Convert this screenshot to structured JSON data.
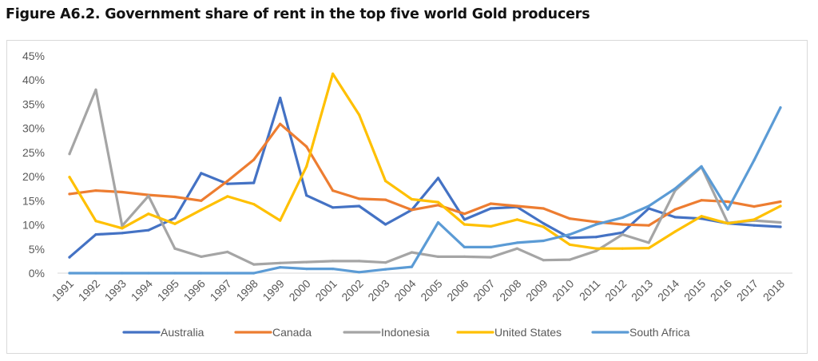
{
  "figure_title": "Figure A6.2. Government share of rent in the top five world Gold producers",
  "chart_data": {
    "type": "line",
    "title": "Figure A6.2. Government share of rent in the top five world Gold producers",
    "xlabel": "",
    "ylabel": "",
    "ylim": [
      0,
      45
    ],
    "yticks": [
      "0%",
      "5%",
      "10%",
      "15%",
      "20%",
      "25%",
      "30%",
      "35%",
      "40%",
      "45%"
    ],
    "ytick_values": [
      0,
      5,
      10,
      15,
      20,
      25,
      30,
      35,
      40,
      45
    ],
    "grid": false,
    "legend_position": "bottom",
    "x": [
      "1991",
      "1992",
      "1993",
      "1994",
      "1995",
      "1996",
      "1997",
      "1998",
      "1999",
      "2000",
      "2001",
      "2002",
      "2003",
      "2004",
      "2005",
      "2006",
      "2007",
      "2008",
      "2009",
      "2010",
      "2011",
      "2012",
      "2013",
      "2014",
      "2015",
      "2016",
      "2017",
      "2018"
    ],
    "series": [
      {
        "name": "Australia",
        "color": "#4472C4",
        "values": [
          3.3,
          8.0,
          8.3,
          8.9,
          11.4,
          20.7,
          18.5,
          18.7,
          36.3,
          16.1,
          13.6,
          13.9,
          10.1,
          13.1,
          19.7,
          11.1,
          13.4,
          13.7,
          10.3,
          7.3,
          7.5,
          8.4,
          13.4,
          11.6,
          11.3,
          10.3,
          9.9,
          9.6
        ]
      },
      {
        "name": "Canada",
        "color": "#ED7D31",
        "values": [
          16.4,
          17.1,
          16.8,
          16.2,
          15.8,
          15.0,
          19.1,
          23.5,
          30.9,
          26.2,
          17.1,
          15.4,
          15.2,
          13.1,
          14.1,
          12.3,
          14.4,
          13.9,
          13.4,
          11.3,
          10.6,
          10.1,
          9.9,
          13.2,
          15.1,
          14.8,
          13.8,
          14.8
        ]
      },
      {
        "name": "Indonesia",
        "color": "#A5A5A5",
        "values": [
          24.7,
          38.0,
          9.8,
          16.0,
          5.1,
          3.4,
          4.4,
          1.8,
          2.1,
          2.3,
          2.5,
          2.5,
          2.2,
          4.3,
          3.4,
          3.4,
          3.3,
          5.1,
          2.7,
          2.8,
          4.6,
          8.0,
          6.3,
          17.1,
          22.0,
          10.4,
          10.9,
          10.5
        ]
      },
      {
        "name": "United States",
        "color": "#FFC000",
        "values": [
          19.9,
          10.8,
          9.3,
          12.3,
          10.2,
          13.1,
          15.9,
          14.3,
          10.9,
          22.1,
          41.3,
          32.8,
          19.1,
          15.3,
          14.7,
          10.1,
          9.7,
          11.1,
          9.6,
          5.9,
          5.1,
          5.1,
          5.2,
          8.6,
          11.8,
          10.3,
          11.1,
          13.9
        ]
      },
      {
        "name": "South Africa",
        "color": "#5B9BD5",
        "values": [
          0,
          0,
          0,
          0,
          0,
          0,
          0,
          0,
          1.2,
          0.9,
          0.9,
          0.2,
          0.8,
          1.3,
          10.5,
          5.4,
          5.4,
          6.3,
          6.7,
          8.0,
          10.1,
          11.5,
          13.9,
          17.5,
          22.1,
          13.2,
          23.4,
          34.3
        ]
      }
    ]
  }
}
